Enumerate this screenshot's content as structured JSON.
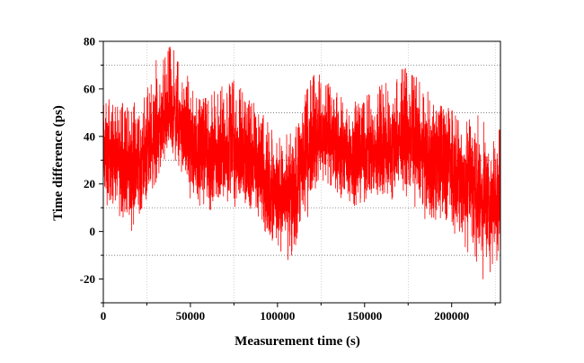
{
  "chart_data": {
    "type": "line",
    "xlabel": "Measurement time (s)",
    "ylabel": "Time difference (ps)",
    "xlim": [
      0,
      228000
    ],
    "ylim": [
      -30,
      80
    ],
    "x_ticks": [
      0,
      50000,
      100000,
      150000,
      200000
    ],
    "x_tick_labels": [
      "0",
      "50000",
      "100000",
      "150000",
      "200000"
    ],
    "y_ticks": [
      -20,
      0,
      20,
      40,
      60,
      80
    ],
    "y_tick_labels": [
      "-20",
      "0",
      "20",
      "40",
      "60",
      "80"
    ],
    "grid": true,
    "series_color": "#ff0000",
    "series": [
      {
        "x": [
          0,
          5000,
          10000,
          15000,
          20000,
          25000,
          30000,
          35000,
          40000,
          45000,
          50000,
          55000,
          60000,
          65000,
          70000,
          75000,
          80000,
          85000,
          90000,
          95000,
          100000,
          105000,
          110000,
          115000,
          120000,
          125000,
          130000,
          135000,
          140000,
          145000,
          150000,
          155000,
          160000,
          165000,
          170000,
          175000,
          180000,
          185000,
          190000,
          195000,
          200000,
          205000,
          210000,
          215000,
          220000,
          225000,
          228000
        ],
        "center": [
          33,
          31,
          28,
          26,
          29,
          33,
          40,
          47,
          50,
          45,
          38,
          33,
          32,
          33,
          34,
          35,
          33,
          30,
          26,
          21,
          16,
          14,
          17,
          27,
          38,
          40,
          38,
          35,
          33,
          32,
          33,
          34,
          35,
          36,
          38,
          39,
          37,
          32,
          29,
          28,
          26,
          24,
          20,
          16,
          13,
          14,
          17
        ],
        "min": [
          16,
          12,
          7,
          3,
          8,
          14,
          26,
          34,
          36,
          28,
          18,
          12,
          11,
          13,
          15,
          16,
          13,
          8,
          3,
          -3,
          -8,
          -13,
          -9,
          5,
          20,
          22,
          19,
          14,
          12,
          11,
          12,
          14,
          15,
          16,
          18,
          20,
          17,
          10,
          4,
          3,
          0,
          -3,
          -10,
          -18,
          -22,
          -15,
          -12
        ],
        "max": [
          68,
          55,
          54,
          56,
          58,
          60,
          72,
          78,
          80,
          74,
          64,
          56,
          58,
          60,
          62,
          64,
          60,
          56,
          52,
          46,
          40,
          38,
          42,
          56,
          68,
          66,
          62,
          60,
          56,
          55,
          58,
          60,
          62,
          64,
          68,
          70,
          66,
          60,
          56,
          54,
          52,
          50,
          46,
          40,
          34,
          36,
          45
        ]
      }
    ]
  }
}
